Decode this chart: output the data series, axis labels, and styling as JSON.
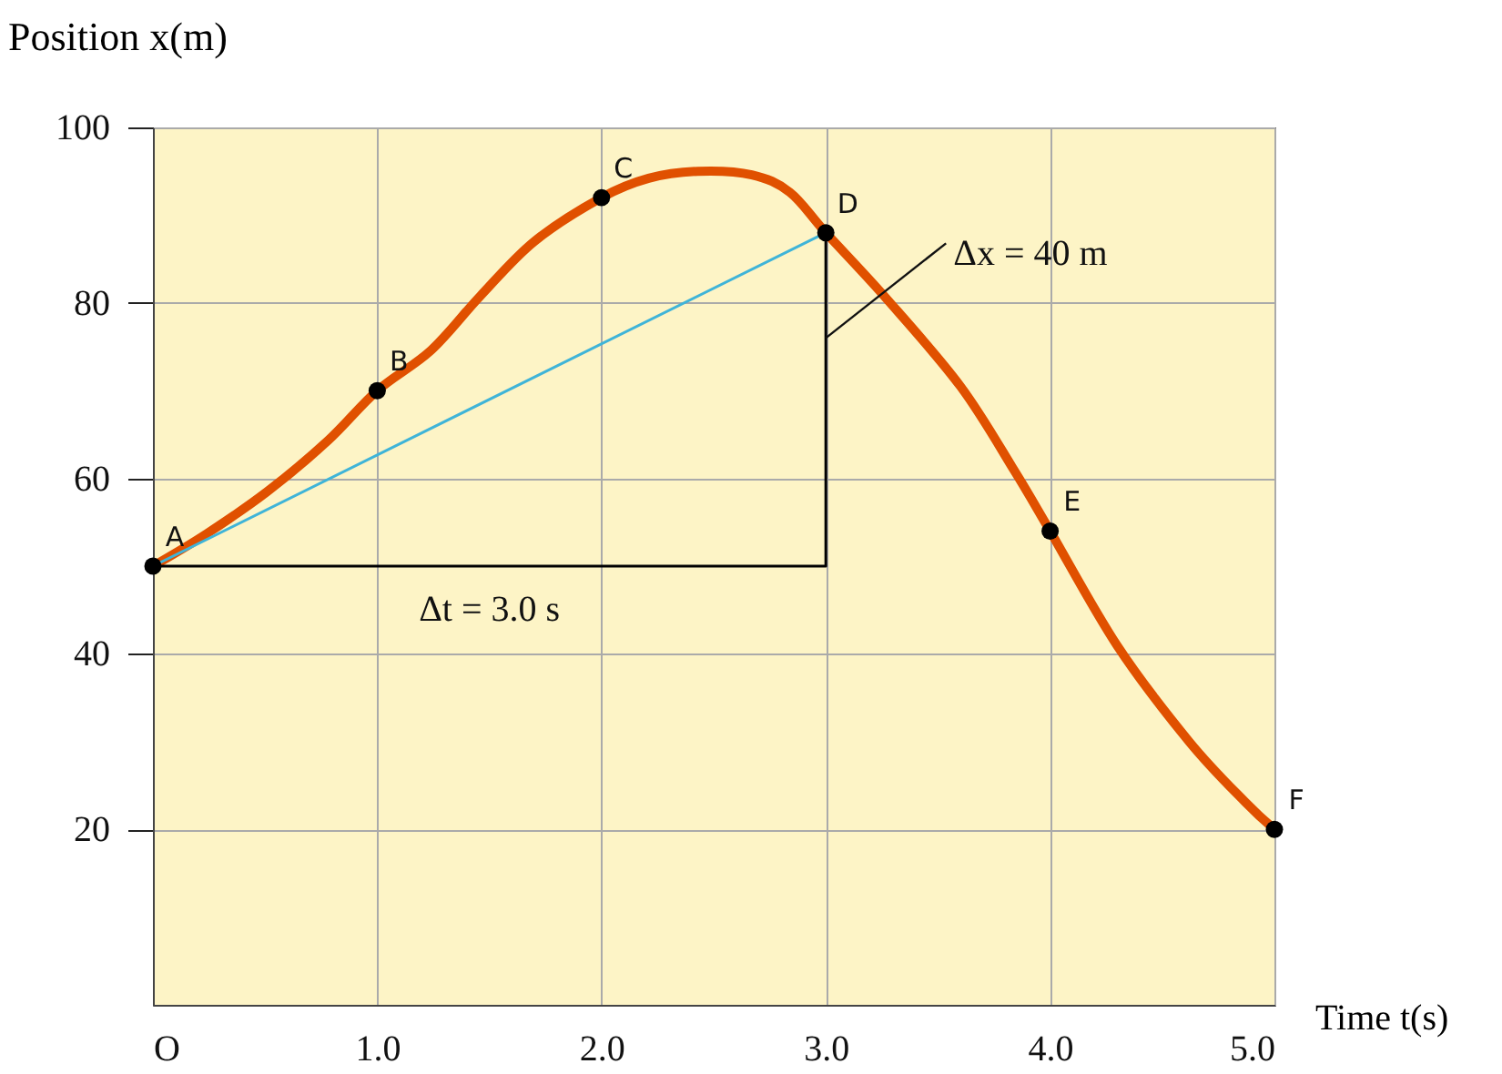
{
  "chart_data": {
    "type": "line",
    "xlabel": "Time t(s)",
    "ylabel": "Position x(m)",
    "xlim": [
      0,
      5
    ],
    "ylim": [
      0,
      100
    ],
    "xticks": [
      {
        "value": 0,
        "label": "O"
      },
      {
        "value": 1,
        "label": "1.0"
      },
      {
        "value": 2,
        "label": "2.0"
      },
      {
        "value": 3,
        "label": "3.0"
      },
      {
        "value": 4,
        "label": "4.0"
      },
      {
        "value": 5,
        "label": "5.0"
      }
    ],
    "yticks": [
      20,
      40,
      60,
      80,
      100
    ],
    "grid": true,
    "series": [
      {
        "type": "line",
        "color": "#e05000",
        "x": [
          0,
          0.24,
          0.51,
          0.78,
          1.0,
          1.24,
          1.46,
          1.7,
          2.0,
          2.21,
          2.43,
          2.67,
          2.84,
          3.0,
          3.27,
          3.6,
          3.84,
          4.0,
          4.3,
          4.62,
          4.87,
          5.0
        ],
        "values": [
          50,
          53.7,
          58.5,
          64.3,
          70,
          74.6,
          80.8,
          87,
          92,
          94.2,
          95,
          94.6,
          92.6,
          88,
          80.5,
          70.5,
          60.9,
          54,
          40.9,
          30,
          23.1,
          20
        ]
      },
      {
        "type": "line",
        "color": "#3fb4d8",
        "x": [
          0,
          3
        ],
        "values": [
          50,
          88
        ]
      },
      {
        "type": "line",
        "color": "#000000",
        "x": [
          0,
          3,
          3
        ],
        "values": [
          50,
          50,
          88
        ]
      },
      {
        "type": "scatter",
        "color": "#000000",
        "marker": "circle",
        "x": [
          0,
          1,
          2,
          3,
          4,
          5
        ],
        "values": [
          50,
          70,
          92,
          88,
          54,
          20
        ],
        "value_labels": [
          "A",
          "B",
          "C",
          "D",
          "E",
          "F"
        ]
      }
    ],
    "annotations": [
      "Δt = 3.0 s",
      {
        "text": "Δx = 40 m",
        "x": 3,
        "y": 76
      }
    ]
  }
}
